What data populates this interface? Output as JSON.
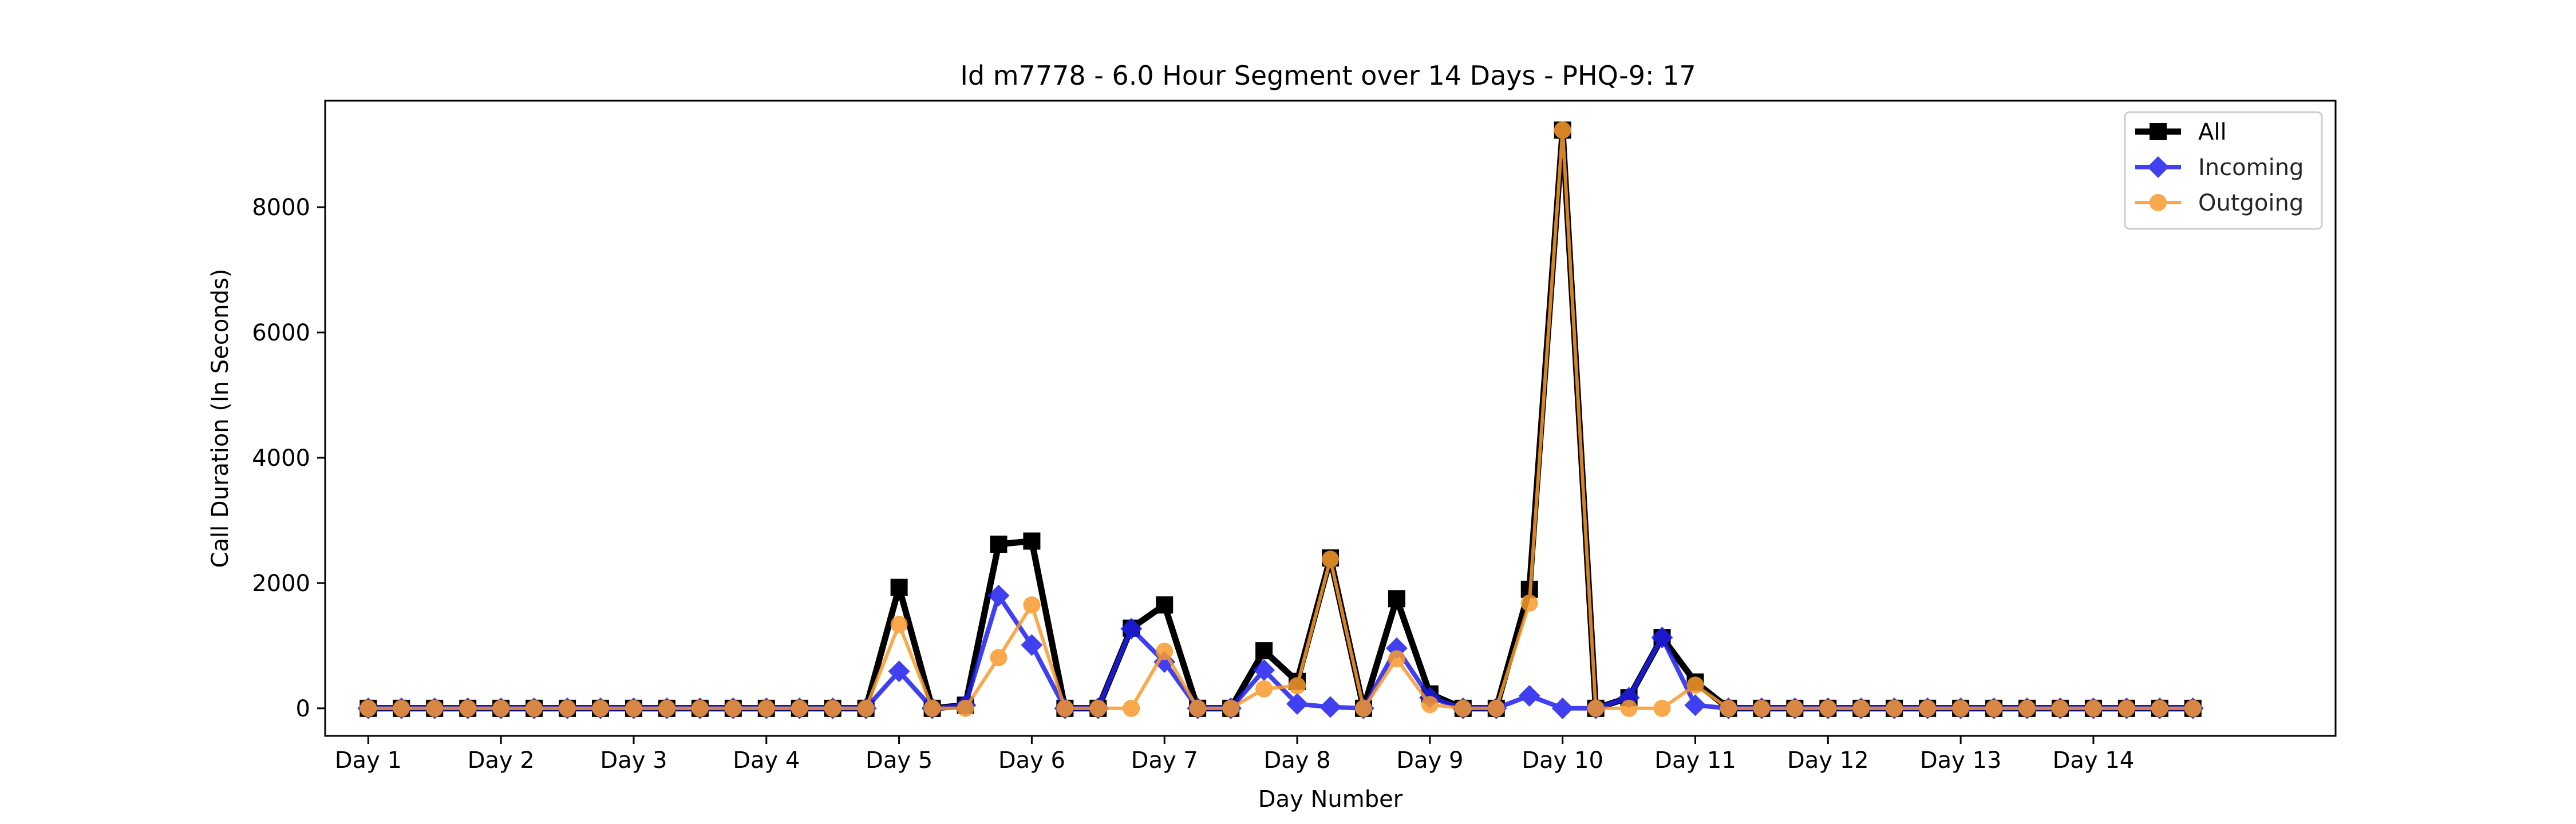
{
  "chart_data": {
    "type": "line",
    "title": "Id m7778 - 6.0 Hour Segment over 14 Days - PHQ-9: 17",
    "xlabel": "Day Number",
    "ylabel": "Call Duration (In Seconds)",
    "x_tick_labels": [
      "Day 1",
      "Day 2",
      "Day 3",
      "Day 4",
      "Day 5",
      "Day 6",
      "Day 7",
      "Day 8",
      "Day 9",
      "Day 10",
      "Day 11",
      "Day 12",
      "Day 13",
      "Day 14"
    ],
    "y_ticks": [
      0,
      2000,
      4000,
      6000,
      8000
    ],
    "ylim": [
      -440,
      9700
    ],
    "xlim": [
      -1.3,
      59.3
    ],
    "grid": false,
    "legend_position": "top-right",
    "series": [
      {
        "name": "All",
        "color": "#000000",
        "marker": "square",
        "values": [
          0,
          0,
          0,
          0,
          0,
          0,
          0,
          0,
          0,
          0,
          0,
          0,
          0,
          0,
          0,
          0,
          1930,
          0,
          50,
          2620,
          2670,
          0,
          0,
          1280,
          1650,
          0,
          0,
          920,
          430,
          2400,
          0,
          1750,
          230,
          0,
          0,
          1900,
          9230,
          0,
          170,
          1130,
          420,
          0,
          0,
          0,
          0,
          0,
          0,
          0,
          0,
          0,
          0,
          0,
          0,
          0,
          0,
          0
        ]
      },
      {
        "name": "Incoming",
        "color": "#1f1fef",
        "marker": "diamond",
        "values": [
          0,
          0,
          0,
          0,
          0,
          0,
          0,
          0,
          0,
          0,
          0,
          0,
          0,
          0,
          0,
          0,
          590,
          0,
          50,
          1800,
          1010,
          0,
          0,
          1270,
          740,
          0,
          0,
          610,
          70,
          20,
          0,
          960,
          170,
          0,
          0,
          200,
          0,
          0,
          170,
          1130,
          50,
          0,
          0,
          0,
          0,
          0,
          0,
          0,
          0,
          0,
          0,
          0,
          0,
          0,
          0,
          0
        ]
      },
      {
        "name": "Outgoing",
        "color": "#f99a2c",
        "marker": "circle",
        "values": [
          0,
          0,
          0,
          0,
          0,
          0,
          0,
          0,
          0,
          0,
          0,
          0,
          0,
          0,
          0,
          0,
          1340,
          0,
          0,
          810,
          1650,
          0,
          0,
          0,
          910,
          0,
          0,
          310,
          360,
          2380,
          0,
          790,
          60,
          0,
          0,
          1680,
          9230,
          0,
          0,
          0,
          370,
          0,
          0,
          0,
          0,
          0,
          0,
          0,
          0,
          0,
          0,
          0,
          0,
          0,
          0,
          0
        ]
      }
    ]
  }
}
